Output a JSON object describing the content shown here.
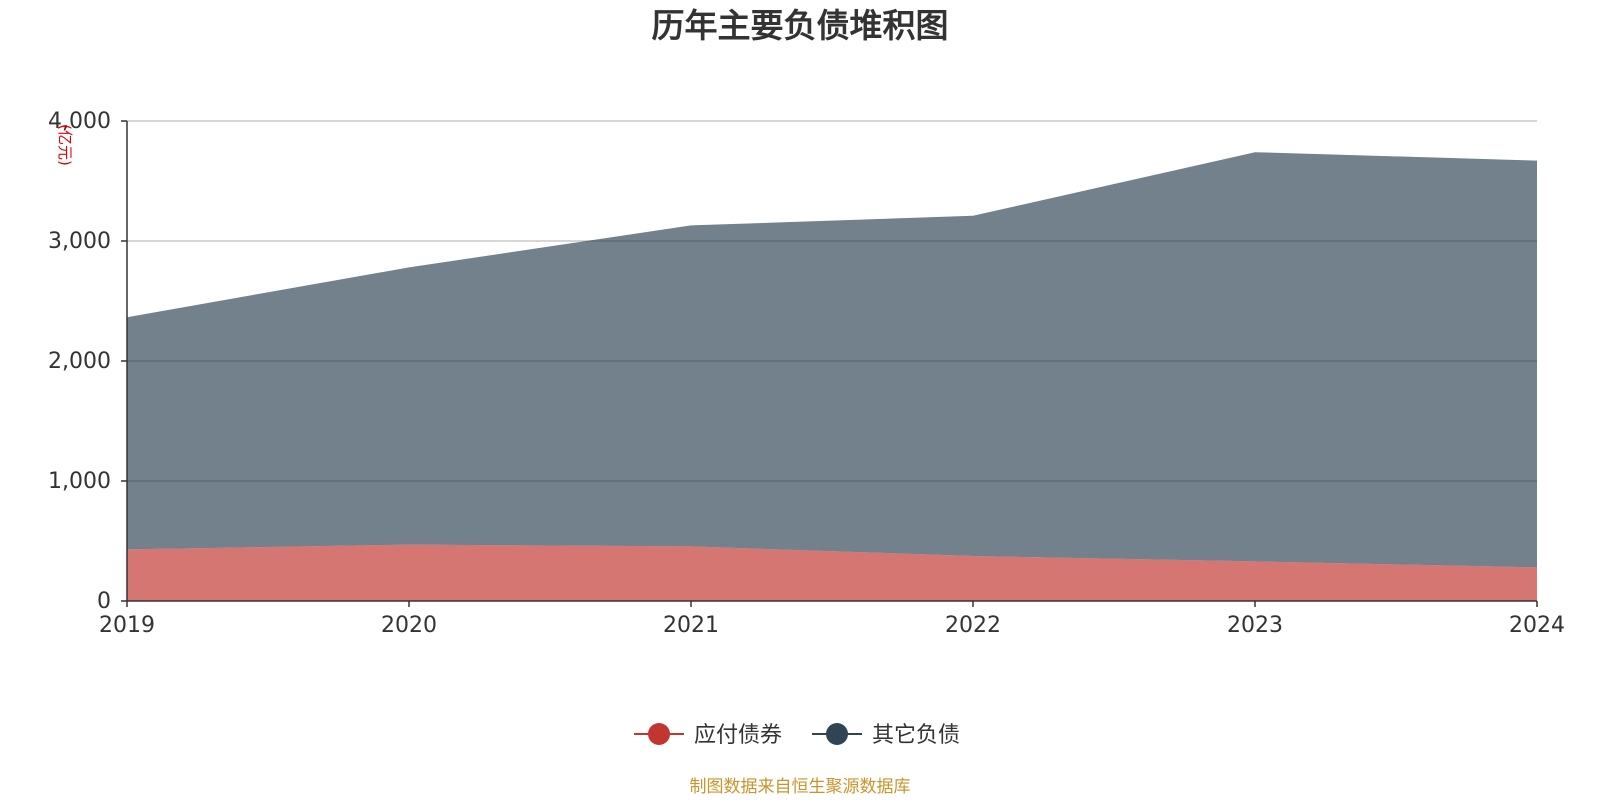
{
  "chart_data": {
    "type": "area",
    "stacked": true,
    "title": "历年主要负债堆积图",
    "y_unit_label": "(亿元)",
    "x": [
      "2019",
      "2020",
      "2021",
      "2022",
      "2023",
      "2024"
    ],
    "ylim": [
      0,
      4000
    ],
    "y_ticks": [
      {
        "value": 0,
        "label": "0"
      },
      {
        "value": 1000,
        "label": "1,000"
      },
      {
        "value": 2000,
        "label": "2,000"
      },
      {
        "value": 3000,
        "label": "3,000"
      },
      {
        "value": 4000,
        "label": "4,000"
      }
    ],
    "grid": true,
    "legend_position": "bottom-center",
    "series": [
      {
        "name": "应付债券",
        "color": "#c23531",
        "values": [
          430,
          470,
          455,
          375,
          330,
          280
        ]
      },
      {
        "name": "其它负债",
        "color": "#2f4554",
        "values": [
          1935,
          2310,
          2675,
          2835,
          3410,
          3390
        ]
      }
    ],
    "source_note": "制图数据来自恒生聚源数据库"
  }
}
